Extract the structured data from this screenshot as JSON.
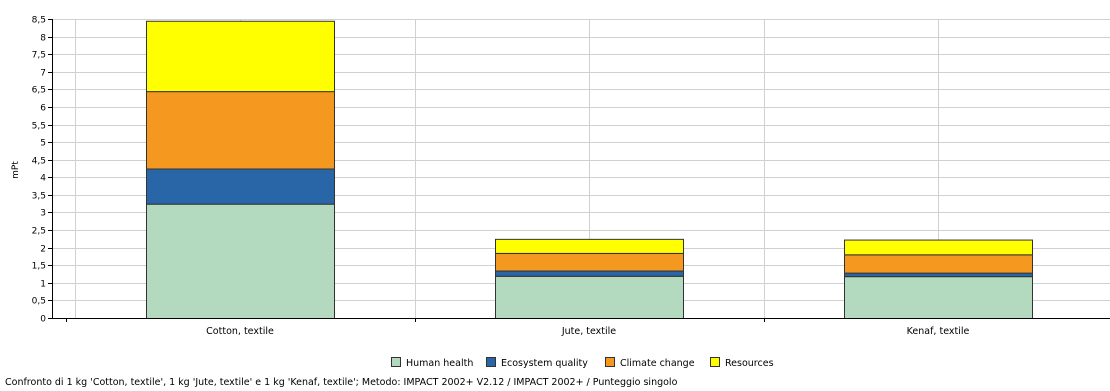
{
  "chart_data": {
    "type": "bar",
    "stacked": true,
    "categories": [
      "Cotton, textile",
      "Jute, textile",
      "Kenaf, textile"
    ],
    "series": [
      {
        "name": "Human health",
        "color": "#b3d9bf",
        "values": [
          3.25,
          1.2,
          1.19
        ]
      },
      {
        "name": "Ecosystem quality",
        "color": "#2866a8",
        "values": [
          1.0,
          0.15,
          0.1
        ]
      },
      {
        "name": "Climate change",
        "color": "#f5981f",
        "values": [
          2.2,
          0.5,
          0.52
        ]
      },
      {
        "name": "Resources",
        "color": "#ffff00",
        "values": [
          2.0,
          0.4,
          0.42
        ]
      }
    ],
    "ylabel": "mPt",
    "ylim": [
      0,
      8.5
    ],
    "yticks": [
      "0",
      "0,5",
      "1",
      "1,5",
      "2",
      "2,5",
      "3",
      "3,5",
      "4",
      "4,5",
      "5",
      "5,5",
      "6",
      "6,5",
      "7",
      "7,5",
      "8",
      "8,5"
    ],
    "grid": true,
    "legend_position": "bottom"
  },
  "caption": "Confronto di 1 kg 'Cotton, textile', 1 kg 'Jute, textile' e 1 kg 'Kenaf, textile'; Metodo: IMPACT 2002+ V2.12 / IMPACT 2002+ / Punteggio singolo"
}
